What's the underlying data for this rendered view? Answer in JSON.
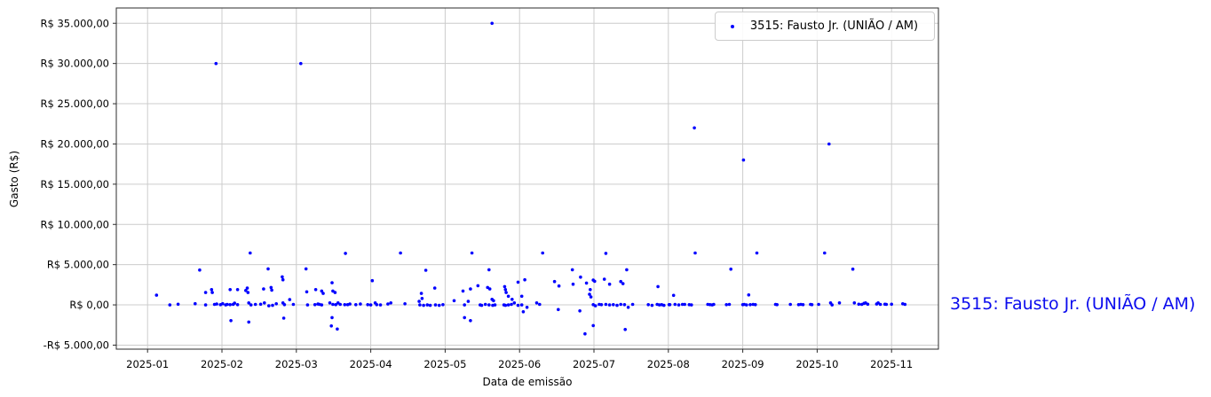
{
  "chart_data": {
    "type": "scatter",
    "title": "",
    "xlabel": "Data de emissão",
    "ylabel": "Gasto (R$)",
    "x_unit": "months since 2025-01-01",
    "xlim_months": [
      -0.42,
      10.63
    ],
    "ylim": [
      -5500,
      36900
    ],
    "grid": true,
    "x_ticks": [
      {
        "m": 0,
        "label": "2025-01"
      },
      {
        "m": 1,
        "label": "2025-02"
      },
      {
        "m": 2,
        "label": "2025-03"
      },
      {
        "m": 3,
        "label": "2025-04"
      },
      {
        "m": 4,
        "label": "2025-05"
      },
      {
        "m": 5,
        "label": "2025-06"
      },
      {
        "m": 6,
        "label": "2025-07"
      },
      {
        "m": 7,
        "label": "2025-08"
      },
      {
        "m": 8,
        "label": "2025-09"
      },
      {
        "m": 9,
        "label": "2025-10"
      },
      {
        "m": 10,
        "label": "2025-11"
      }
    ],
    "y_ticks": [
      {
        "v": -5000,
        "label": "-R$ 5.000,00"
      },
      {
        "v": 0,
        "label": "R$ 0,00"
      },
      {
        "v": 5000,
        "label": "R$ 5.000,00"
      },
      {
        "v": 10000,
        "label": "R$ 10.000,00"
      },
      {
        "v": 15000,
        "label": "R$ 15.000,00"
      },
      {
        "v": 20000,
        "label": "R$ 20.000,00"
      },
      {
        "v": 25000,
        "label": "R$ 25.000,00"
      },
      {
        "v": 30000,
        "label": "R$ 30.000,00"
      },
      {
        "v": 35000,
        "label": "R$ 35.000,00"
      }
    ],
    "legend": {
      "position": "upper right",
      "label": "3515: Fausto Jr. (UNIÃO / AM)",
      "marker_color": "#0000ff"
    },
    "series": [
      {
        "name": "3515: Fausto Jr. (UNIÃO / AM)",
        "color": "#0000ff",
        "marker": "dot",
        "points": [
          [
            0.92,
            30000
          ],
          [
            2.06,
            30000
          ],
          [
            4.63,
            35000
          ],
          [
            7.35,
            22000
          ],
          [
            8.01,
            18000
          ],
          [
            9.16,
            20000
          ],
          [
            1.38,
            6450
          ],
          [
            2.66,
            6400
          ],
          [
            3.4,
            6450
          ],
          [
            4.36,
            6450
          ],
          [
            5.31,
            6450
          ],
          [
            6.16,
            6400
          ],
          [
            7.36,
            6450
          ],
          [
            8.19,
            6450
          ],
          [
            9.1,
            6450
          ],
          [
            0.7,
            4330
          ],
          [
            1.62,
            4480
          ],
          [
            2.13,
            4480
          ],
          [
            3.74,
            4300
          ],
          [
            4.59,
            4370
          ],
          [
            5.71,
            4370
          ],
          [
            6.44,
            4370
          ],
          [
            7.84,
            4440
          ],
          [
            9.48,
            4440
          ],
          [
            0.12,
            1210
          ],
          [
            0.78,
            1540
          ],
          [
            0.86,
            1905
          ],
          [
            0.87,
            1540
          ],
          [
            1.11,
            1905
          ],
          [
            1.21,
            1905
          ],
          [
            1.32,
            1795
          ],
          [
            1.34,
            2090
          ],
          [
            1.35,
            1540
          ],
          [
            1.56,
            1980
          ],
          [
            1.66,
            2170
          ],
          [
            1.67,
            1840
          ],
          [
            1.81,
            3490
          ],
          [
            1.82,
            3120
          ],
          [
            1.91,
            660
          ],
          [
            2.14,
            1620
          ],
          [
            2.26,
            1905
          ],
          [
            2.34,
            1730
          ],
          [
            2.36,
            1430
          ],
          [
            2.48,
            2750
          ],
          [
            2.49,
            1730
          ],
          [
            2.52,
            1540
          ],
          [
            3.02,
            3010
          ],
          [
            3.65,
            440
          ],
          [
            3.68,
            1430
          ],
          [
            3.69,
            800
          ],
          [
            3.86,
            2090
          ],
          [
            4.12,
            520
          ],
          [
            4.24,
            1730
          ],
          [
            4.31,
            440
          ],
          [
            4.34,
            1980
          ],
          [
            4.44,
            2390
          ],
          [
            4.57,
            2170
          ],
          [
            4.6,
            1980
          ],
          [
            4.63,
            690
          ],
          [
            4.65,
            520
          ],
          [
            4.8,
            2280
          ],
          [
            4.81,
            1905
          ],
          [
            4.82,
            1540
          ],
          [
            4.85,
            1070
          ],
          [
            4.9,
            690
          ],
          [
            4.98,
            2830
          ],
          [
            5.03,
            1070
          ],
          [
            5.07,
            3120
          ],
          [
            5.47,
            2900
          ],
          [
            5.53,
            2350
          ],
          [
            5.72,
            2570
          ],
          [
            5.82,
            3450
          ],
          [
            5.9,
            2720
          ],
          [
            5.94,
            1320
          ],
          [
            5.95,
            1905
          ],
          [
            5.96,
            990
          ],
          [
            5.99,
            3080
          ],
          [
            6.01,
            2940
          ],
          [
            6.14,
            3190
          ],
          [
            6.21,
            2570
          ],
          [
            6.36,
            2900
          ],
          [
            6.39,
            2640
          ],
          [
            6.86,
            2280
          ],
          [
            7.07,
            1180
          ],
          [
            8.08,
            1240
          ],
          [
            0.3,
            0
          ],
          [
            0.41,
            80
          ],
          [
            0.64,
            150
          ],
          [
            0.78,
            0
          ],
          [
            0.9,
            60
          ],
          [
            0.93,
            110
          ],
          [
            0.98,
            30
          ],
          [
            1.01,
            150
          ],
          [
            1.05,
            0
          ],
          [
            1.07,
            60
          ],
          [
            1.11,
            30
          ],
          [
            1.15,
            60
          ],
          [
            1.17,
            220
          ],
          [
            1.21,
            30
          ],
          [
            1.36,
            250
          ],
          [
            1.39,
            0
          ],
          [
            1.45,
            60
          ],
          [
            1.52,
            80
          ],
          [
            1.57,
            250
          ],
          [
            1.73,
            140
          ],
          [
            1.82,
            250
          ],
          [
            1.84,
            30
          ],
          [
            1.96,
            60
          ],
          [
            2.15,
            0
          ],
          [
            2.25,
            30
          ],
          [
            2.29,
            110
          ],
          [
            2.31,
            60
          ],
          [
            2.34,
            0
          ],
          [
            2.45,
            250
          ],
          [
            2.49,
            60
          ],
          [
            2.53,
            30
          ],
          [
            2.56,
            250
          ],
          [
            2.59,
            60
          ],
          [
            2.65,
            30
          ],
          [
            2.69,
            30
          ],
          [
            2.72,
            110
          ],
          [
            2.8,
            30
          ],
          [
            2.86,
            110
          ],
          [
            2.96,
            30
          ],
          [
            3.0,
            0
          ],
          [
            3.06,
            250
          ],
          [
            3.08,
            30
          ],
          [
            3.13,
            0
          ],
          [
            3.23,
            110
          ],
          [
            3.27,
            250
          ],
          [
            3.46,
            140
          ],
          [
            3.66,
            0
          ],
          [
            3.76,
            0
          ],
          [
            3.87,
            0
          ],
          [
            3.97,
            30
          ],
          [
            4.26,
            0
          ],
          [
            4.47,
            0
          ],
          [
            4.54,
            60
          ],
          [
            4.59,
            0
          ],
          [
            4.67,
            0
          ],
          [
            4.79,
            0
          ],
          [
            4.85,
            0
          ],
          [
            4.89,
            60
          ],
          [
            4.93,
            250
          ],
          [
            5.03,
            0
          ],
          [
            5.23,
            250
          ],
          [
            5.27,
            60
          ],
          [
            5.99,
            30
          ],
          [
            6.07,
            60
          ],
          [
            6.1,
            30
          ],
          [
            6.16,
            60
          ],
          [
            6.21,
            0
          ],
          [
            6.26,
            30
          ],
          [
            6.36,
            60
          ],
          [
            6.41,
            30
          ],
          [
            6.52,
            60
          ],
          [
            6.73,
            30
          ],
          [
            6.85,
            60
          ],
          [
            6.88,
            0
          ],
          [
            6.91,
            30
          ],
          [
            7.02,
            30
          ],
          [
            7.09,
            60
          ],
          [
            7.14,
            0
          ],
          [
            7.19,
            60
          ],
          [
            7.01,
            30
          ],
          [
            7.22,
            60
          ],
          [
            7.28,
            30
          ],
          [
            7.31,
            0
          ],
          [
            7.53,
            60
          ],
          [
            7.56,
            30
          ],
          [
            7.59,
            0
          ],
          [
            7.61,
            60
          ],
          [
            7.78,
            30
          ],
          [
            7.82,
            60
          ],
          [
            8.0,
            30
          ],
          [
            8.02,
            60
          ],
          [
            8.05,
            0
          ],
          [
            8.1,
            30
          ],
          [
            8.14,
            60
          ],
          [
            8.17,
            30
          ],
          [
            8.44,
            60
          ],
          [
            8.46,
            30
          ],
          [
            8.64,
            60
          ],
          [
            8.75,
            30
          ],
          [
            8.78,
            60
          ],
          [
            8.81,
            30
          ],
          [
            8.91,
            60
          ],
          [
            8.93,
            30
          ],
          [
            9.02,
            60
          ],
          [
            9.18,
            250
          ],
          [
            9.2,
            0
          ],
          [
            9.3,
            250
          ],
          [
            9.5,
            250
          ],
          [
            9.56,
            80
          ],
          [
            9.6,
            60
          ],
          [
            9.63,
            190
          ],
          [
            9.65,
            250
          ],
          [
            9.68,
            80
          ],
          [
            9.8,
            110
          ],
          [
            9.82,
            250
          ],
          [
            9.85,
            60
          ],
          [
            9.91,
            80
          ],
          [
            9.93,
            60
          ],
          [
            10.0,
            80
          ],
          [
            10.15,
            140
          ],
          [
            10.18,
            60
          ],
          [
            1.63,
            -110
          ],
          [
            1.68,
            -60
          ],
          [
            3.71,
            -60
          ],
          [
            3.8,
            -60
          ],
          [
            3.92,
            -60
          ],
          [
            4.49,
            -60
          ],
          [
            4.64,
            -60
          ],
          [
            4.81,
            -60
          ],
          [
            4.98,
            -60
          ],
          [
            5.1,
            -300
          ],
          [
            6.02,
            -110
          ],
          [
            6.31,
            -60
          ],
          [
            6.46,
            -300
          ],
          [
            6.78,
            -60
          ],
          [
            6.94,
            -60
          ],
          [
            1.12,
            -1950
          ],
          [
            1.36,
            -2130
          ],
          [
            1.83,
            -1650
          ],
          [
            2.47,
            -2610
          ],
          [
            2.48,
            -1575
          ],
          [
            2.55,
            -3000
          ],
          [
            4.26,
            -1575
          ],
          [
            4.34,
            -1950
          ],
          [
            5.05,
            -850
          ],
          [
            5.52,
            -580
          ],
          [
            5.81,
            -740
          ],
          [
            5.88,
            -3600
          ],
          [
            5.99,
            -2570
          ],
          [
            6.42,
            -3050
          ]
        ]
      }
    ],
    "colors": {
      "grid": "#cccccc",
      "axis_border": "#2b2b2b",
      "tick_text": "#000000"
    }
  },
  "side_label": {
    "text": "3515: Fausto Jr. (UNIÃO / AM)",
    "color": "#0b0bee"
  }
}
